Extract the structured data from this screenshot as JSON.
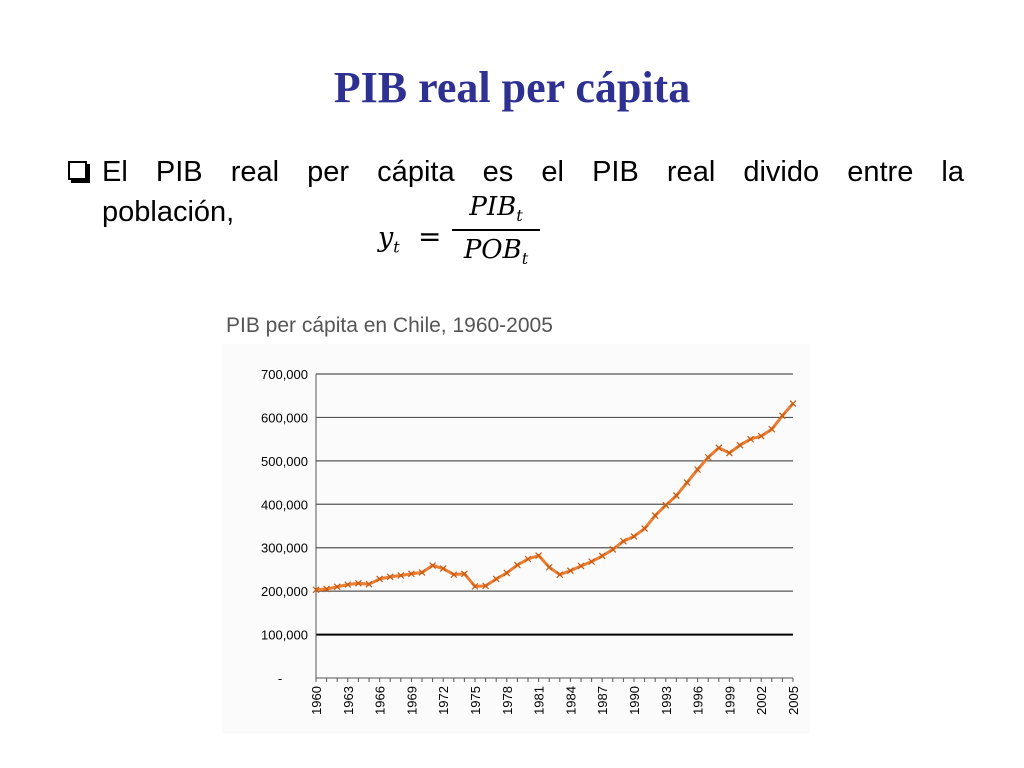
{
  "slide": {
    "title": "PIB real per cápita",
    "bullet_line1": "El PIB real per cápita es el PIB real divido entre la",
    "bullet_line2": "población,",
    "formula": {
      "lhs": "y",
      "lhs_sub": "t",
      "equals": "=",
      "num": "PIB",
      "num_sub": "t",
      "den": "POB",
      "den_sub": "t"
    }
  },
  "chart_data": {
    "type": "line",
    "title": "PIB per cápita en Chile, 1960-2005",
    "xlabel": "",
    "ylabel": "",
    "ylim": [
      0,
      700000
    ],
    "y_ticks": [
      {
        "value": 0,
        "label": "-"
      },
      {
        "value": 100000,
        "label": "100,000"
      },
      {
        "value": 200000,
        "label": "200,000"
      },
      {
        "value": 300000,
        "label": "300,000"
      },
      {
        "value": 400000,
        "label": "400,000"
      },
      {
        "value": 500000,
        "label": "500,000"
      },
      {
        "value": 600000,
        "label": "600,000"
      },
      {
        "value": 700000,
        "label": "700,000"
      }
    ],
    "x_tick_labels": [
      "1960",
      "1963",
      "1966",
      "1969",
      "1972",
      "1975",
      "1978",
      "1981",
      "1984",
      "1987",
      "1990",
      "1993",
      "1996",
      "1999",
      "2002",
      "2005"
    ],
    "grid": true,
    "line_color": "#ed7d31",
    "series": [
      {
        "x": [
          1960,
          1961,
          1962,
          1963,
          1964,
          1965,
          1966,
          1967,
          1968,
          1969,
          1970,
          1971,
          1972,
          1973,
          1974,
          1975,
          1976,
          1977,
          1978,
          1979,
          1980,
          1981,
          1982,
          1983,
          1984,
          1985,
          1986,
          1987,
          1988,
          1989,
          1990,
          1991,
          1992,
          1993,
          1994,
          1995,
          1996,
          1997,
          1998,
          1999,
          2000,
          2001,
          2002,
          2003,
          2004,
          2005
        ],
        "y": [
          203000,
          205000,
          210000,
          215000,
          218000,
          216000,
          228000,
          233000,
          236000,
          240000,
          243000,
          259000,
          252000,
          238000,
          240000,
          211000,
          212000,
          228000,
          242000,
          260000,
          274000,
          282000,
          255000,
          238000,
          247000,
          258000,
          268000,
          281000,
          296000,
          315000,
          326000,
          344000,
          374000,
          398000,
          420000,
          450000,
          480000,
          508000,
          530000,
          518000,
          536000,
          550000,
          557000,
          573000,
          604000,
          632000
        ]
      }
    ]
  }
}
